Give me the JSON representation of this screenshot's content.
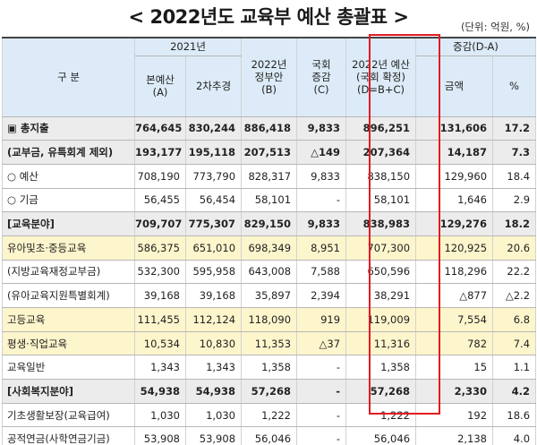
{
  "title": "< 2022년도 교육부 예산 총괄표 >",
  "unit": "(단위: 억원, %)",
  "header": {
    "category": "구  분",
    "group_2021": "2021년",
    "col_main_budget": "본예산\n(A)",
    "col_supp": "2차추경",
    "col_gov_proposal": "2022년\n정부안\n(B)",
    "col_assembly_change": "국회\n증감\n(C)",
    "col_2022_final": "2022년 예산\n(국회 확정)\n(D=B+C)",
    "group_change": "증감(D-A)",
    "col_amount": "금액",
    "col_pct": "%"
  },
  "rows": [
    {
      "label": "▣ 총지출",
      "a": "764,645",
      "s": "830,244",
      "b": "886,418",
      "c": "9,833",
      "d": "896,251",
      "amt": "131,606",
      "pct": "17.2",
      "style": "gray bold"
    },
    {
      "label": "(교부금, 유특회계 제외)",
      "a": "193,177",
      "s": "195,118",
      "b": "207,513",
      "c": "△149",
      "d": "207,364",
      "amt": "14,187",
      "pct": "7.3",
      "style": "gray bold"
    },
    {
      "label": "○ 예산",
      "a": "708,190",
      "s": "773,790",
      "b": "828,317",
      "c": "9,833",
      "d": "838,150",
      "amt": "129,960",
      "pct": "18.4",
      "style": "white"
    },
    {
      "label": "○ 기금",
      "a": "56,455",
      "s": "56,454",
      "b": "58,101",
      "c": "-",
      "d": "58,101",
      "amt": "1,646",
      "pct": "2.9",
      "style": "white"
    },
    {
      "label": "[교육분야]",
      "a": "709,707",
      "s": "775,307",
      "b": "829,150",
      "c": "9,833",
      "d": "838,983",
      "amt": "129,276",
      "pct": "18.2",
      "style": "gray bold"
    },
    {
      "label": "유아및초·중등교육",
      "a": "586,375",
      "s": "651,010",
      "b": "698,349",
      "c": "8,951",
      "d": "707,300",
      "amt": "120,925",
      "pct": "20.6",
      "style": "yellow"
    },
    {
      "label": "(지방교육재정교부금)",
      "a": "532,300",
      "s": "595,958",
      "b": "643,008",
      "c": "7,588",
      "d": "650,596",
      "amt": "118,296",
      "pct": "22.2",
      "style": "white"
    },
    {
      "label": "(유아교육지원특별회계)",
      "a": "39,168",
      "s": "39,168",
      "b": "35,897",
      "c": "2,394",
      "d": "38,291",
      "amt": "△877",
      "pct": "△2.2",
      "style": "white"
    },
    {
      "label": "고등교육",
      "a": "111,455",
      "s": "112,124",
      "b": "118,090",
      "c": "919",
      "d": "119,009",
      "amt": "7,554",
      "pct": "6.8",
      "style": "yellow"
    },
    {
      "label": "평생·직업교육",
      "a": "10,534",
      "s": "10,830",
      "b": "11,353",
      "c": "△37",
      "d": "11,316",
      "amt": "782",
      "pct": "7.4",
      "style": "yellow"
    },
    {
      "label": "교육일반",
      "a": "1,343",
      "s": "1,343",
      "b": "1,358",
      "c": "-",
      "d": "1,358",
      "amt": "15",
      "pct": "1.1",
      "style": "white"
    },
    {
      "label": "[사회복지분야]",
      "a": "54,938",
      "s": "54,938",
      "b": "57,268",
      "c": "-",
      "d": "57,268",
      "amt": "2,330",
      "pct": "4.2",
      "style": "gray bold"
    },
    {
      "label": "기초생활보장(교육급여)",
      "a": "1,030",
      "s": "1,030",
      "b": "1,222",
      "c": "-",
      "d": "1,222",
      "amt": "192",
      "pct": "18.6",
      "style": "white"
    },
    {
      "label": "공적연금(사학연금기금)",
      "a": "53,908",
      "s": "53,908",
      "b": "56,046",
      "c": "-",
      "d": "56,046",
      "amt": "2,138",
      "pct": "4.0",
      "style": "white"
    }
  ]
}
